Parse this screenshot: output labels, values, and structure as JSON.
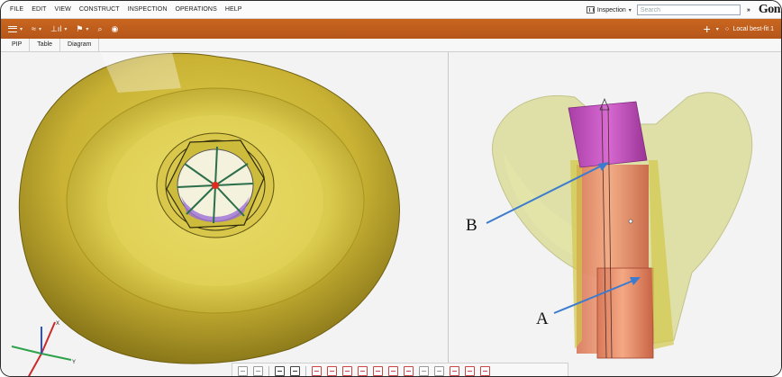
{
  "menu": {
    "items": [
      "FILE",
      "EDIT",
      "VIEW",
      "CONSTRUCT",
      "INSPECTION",
      "OPERATIONS",
      "HELP"
    ],
    "workspace_label": "Inspection",
    "search_placeholder": "Search",
    "brand_text": "Gon"
  },
  "toolbar": {
    "items": [
      {
        "icon": "hamburger-menu-icon",
        "glyph": ""
      },
      {
        "icon": "curve-icon",
        "glyph": "≈"
      },
      {
        "icon": "measure-chart-icon",
        "glyph": "⊥ıl"
      },
      {
        "icon": "flag-icon",
        "glyph": "⚑"
      },
      {
        "icon": "search-icon",
        "glyph": "⌕"
      },
      {
        "icon": "camera-icon",
        "glyph": "◉"
      }
    ],
    "add_glyph": "+",
    "alignment_label": "Local best-fit 1"
  },
  "tabs": [
    "PIP",
    "Table",
    "Diagram"
  ],
  "annotations": {
    "label_b": "B",
    "label_a": "A"
  },
  "colors": {
    "accent_orange": "#c2601d",
    "model_yellow": "#d4c23a",
    "model_magenta": "#c44bc0",
    "model_orange": "#e98d66",
    "arrow_blue": "#3b7bd0"
  },
  "bottom_toolbar": {
    "buttons": [
      "view-icon",
      "stack-icon",
      "|",
      "cube-icon",
      "layers-icon",
      "|",
      "point-icon",
      "plane-icon",
      "cylinder-icon",
      "box-icon",
      "frame-icon",
      "chart-icon",
      "link-icon",
      "grid-icon",
      "cross-icon",
      "check-icon",
      "dash-icon",
      "scale-icon"
    ]
  }
}
